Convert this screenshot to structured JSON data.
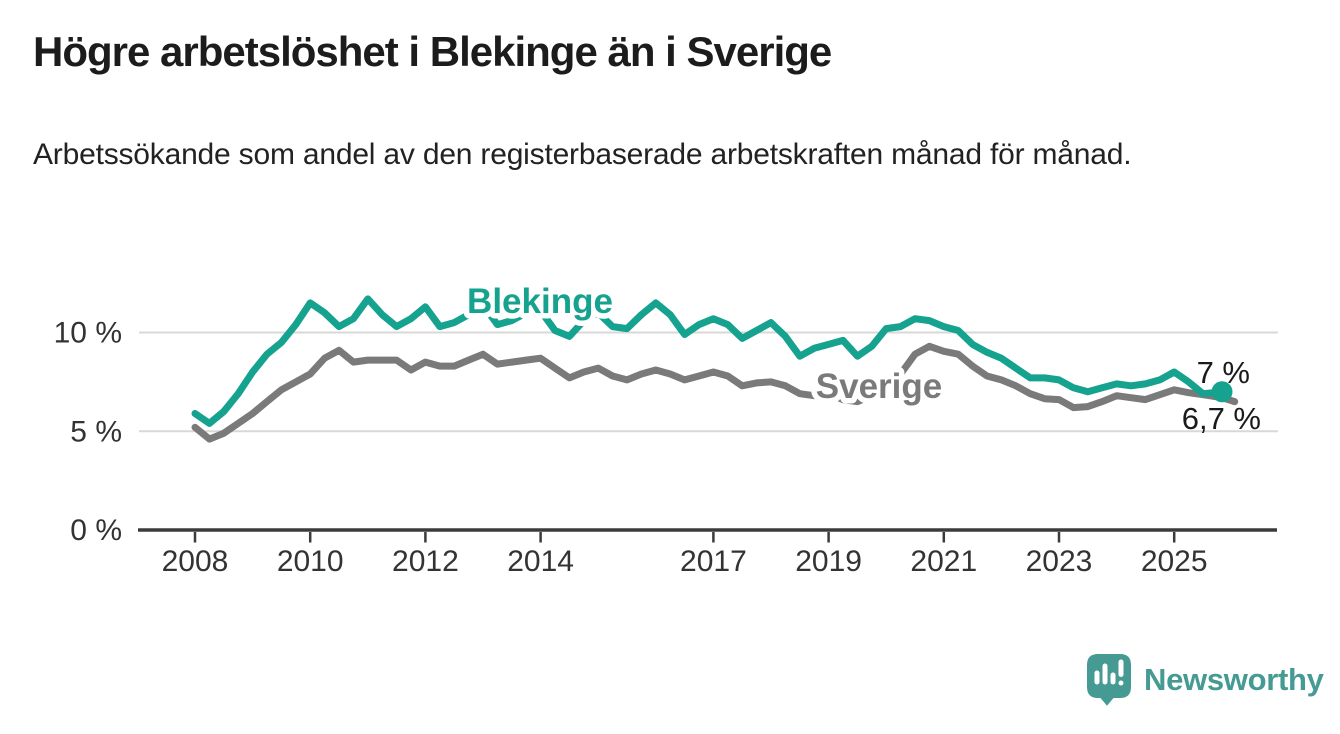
{
  "header": {
    "title": "Högre arbetslöshet i Blekinge än i Sverige",
    "subtitle": "Arbetssökande som andel av den registerbaserade arbetskraften månad för månad."
  },
  "footer": {
    "brand": "Newsworthy",
    "logo_icon": "speech-bubble-bar-chart"
  },
  "colors": {
    "blekinge_teal": "#15a28e",
    "sverige_gray": "#7a7a7a",
    "logo_teal": "#459b93",
    "gridline": "#d8d8d8",
    "axis": "#3b3b3b",
    "text_dark": "#333333",
    "annotation_text": "#1a1a1a"
  },
  "chart_data": {
    "type": "line",
    "title": "Högre arbetslöshet i Blekinge än i Sverige",
    "xlabel": "",
    "ylabel": "Arbetssökande som andel av den registerbaserade arbetskraften",
    "x_unit": "year (monthly observations, Jan 2008 – Nov 2025)",
    "grid": "horizontal",
    "legend_position": "inline-labels-on-lines",
    "ylim": [
      0,
      13
    ],
    "xlim": [
      2007.9,
      2026.6
    ],
    "xticks": [
      2008,
      2010,
      2012,
      2014,
      2017,
      2019,
      2021,
      2023,
      2025
    ],
    "yticks": [
      {
        "value": 0,
        "label": "0 %"
      },
      {
        "value": 5,
        "label": "5 %"
      },
      {
        "value": 10,
        "label": "10 %"
      }
    ],
    "series": [
      {
        "name": "Sverige",
        "color": "#7a7a7a",
        "end_label": "6,7 %",
        "end_value": 6.7,
        "points": [
          [
            2008.0,
            5.2
          ],
          [
            2008.25,
            4.6
          ],
          [
            2008.5,
            4.9
          ],
          [
            2008.75,
            5.4
          ],
          [
            2009.0,
            5.9
          ],
          [
            2009.25,
            6.5
          ],
          [
            2009.5,
            7.1
          ],
          [
            2009.75,
            7.5
          ],
          [
            2010.0,
            7.9
          ],
          [
            2010.25,
            8.7
          ],
          [
            2010.5,
            9.1
          ],
          [
            2010.75,
            8.5
          ],
          [
            2011.0,
            8.6
          ],
          [
            2011.25,
            8.6
          ],
          [
            2011.5,
            8.6
          ],
          [
            2011.75,
            8.1
          ],
          [
            2012.0,
            8.5
          ],
          [
            2012.25,
            8.3
          ],
          [
            2012.5,
            8.3
          ],
          [
            2012.75,
            8.6
          ],
          [
            2013.0,
            8.9
          ],
          [
            2013.25,
            8.4
          ],
          [
            2013.5,
            8.5
          ],
          [
            2013.75,
            8.6
          ],
          [
            2014.0,
            8.7
          ],
          [
            2014.25,
            8.2
          ],
          [
            2014.5,
            7.7
          ],
          [
            2014.75,
            8.0
          ],
          [
            2015.0,
            8.2
          ],
          [
            2015.25,
            7.8
          ],
          [
            2015.5,
            7.6
          ],
          [
            2015.75,
            7.9
          ],
          [
            2016.0,
            8.1
          ],
          [
            2016.25,
            7.9
          ],
          [
            2016.5,
            7.6
          ],
          [
            2016.75,
            7.8
          ],
          [
            2017.0,
            8.0
          ],
          [
            2017.25,
            7.8
          ],
          [
            2017.5,
            7.3
          ],
          [
            2017.75,
            7.45
          ],
          [
            2018.0,
            7.5
          ],
          [
            2018.25,
            7.3
          ],
          [
            2018.5,
            6.9
          ],
          [
            2018.75,
            6.8
          ],
          [
            2019.0,
            6.9
          ],
          [
            2019.25,
            6.6
          ],
          [
            2019.5,
            6.5
          ],
          [
            2019.75,
            6.8
          ],
          [
            2020.0,
            7.2
          ],
          [
            2020.25,
            7.9
          ],
          [
            2020.5,
            8.9
          ],
          [
            2020.75,
            9.3
          ],
          [
            2021.0,
            9.05
          ],
          [
            2021.25,
            8.9
          ],
          [
            2021.5,
            8.3
          ],
          [
            2021.75,
            7.8
          ],
          [
            2022.0,
            7.6
          ],
          [
            2022.25,
            7.3
          ],
          [
            2022.5,
            6.9
          ],
          [
            2022.75,
            6.65
          ],
          [
            2023.0,
            6.6
          ],
          [
            2023.25,
            6.2
          ],
          [
            2023.5,
            6.25
          ],
          [
            2023.75,
            6.5
          ],
          [
            2024.0,
            6.8
          ],
          [
            2024.25,
            6.7
          ],
          [
            2024.5,
            6.6
          ],
          [
            2024.75,
            6.85
          ],
          [
            2025.0,
            7.1
          ],
          [
            2025.25,
            6.95
          ],
          [
            2025.5,
            6.85
          ],
          [
            2025.83,
            6.7
          ]
        ]
      },
      {
        "name": "Blekinge",
        "color": "#15a28e",
        "end_label": "7 %",
        "end_value": 7.0,
        "end_marker": "dot",
        "points": [
          [
            2008.0,
            5.9
          ],
          [
            2008.25,
            5.4
          ],
          [
            2008.5,
            6.0
          ],
          [
            2008.75,
            6.9
          ],
          [
            2009.0,
            8.0
          ],
          [
            2009.25,
            8.9
          ],
          [
            2009.5,
            9.5
          ],
          [
            2009.75,
            10.4
          ],
          [
            2010.0,
            11.5
          ],
          [
            2010.25,
            11.0
          ],
          [
            2010.5,
            10.3
          ],
          [
            2010.75,
            10.7
          ],
          [
            2011.0,
            11.7
          ],
          [
            2011.25,
            10.9
          ],
          [
            2011.5,
            10.3
          ],
          [
            2011.75,
            10.7
          ],
          [
            2012.0,
            11.3
          ],
          [
            2012.25,
            10.3
          ],
          [
            2012.5,
            10.5
          ],
          [
            2012.75,
            10.9
          ],
          [
            2013.0,
            11.4
          ],
          [
            2013.25,
            10.4
          ],
          [
            2013.5,
            10.6
          ],
          [
            2013.75,
            11.0
          ],
          [
            2014.0,
            11.1
          ],
          [
            2014.25,
            10.1
          ],
          [
            2014.5,
            9.8
          ],
          [
            2014.75,
            10.6
          ],
          [
            2015.0,
            11.0
          ],
          [
            2015.25,
            10.3
          ],
          [
            2015.5,
            10.2
          ],
          [
            2015.75,
            10.9
          ],
          [
            2016.0,
            11.5
          ],
          [
            2016.25,
            10.9
          ],
          [
            2016.5,
            9.9
          ],
          [
            2016.75,
            10.4
          ],
          [
            2017.0,
            10.7
          ],
          [
            2017.25,
            10.4
          ],
          [
            2017.5,
            9.7
          ],
          [
            2017.75,
            10.1
          ],
          [
            2018.0,
            10.5
          ],
          [
            2018.25,
            9.8
          ],
          [
            2018.5,
            8.8
          ],
          [
            2018.75,
            9.2
          ],
          [
            2019.0,
            9.4
          ],
          [
            2019.25,
            9.6
          ],
          [
            2019.5,
            8.8
          ],
          [
            2019.75,
            9.3
          ],
          [
            2020.0,
            10.2
          ],
          [
            2020.25,
            10.3
          ],
          [
            2020.5,
            10.7
          ],
          [
            2020.75,
            10.6
          ],
          [
            2021.0,
            10.3
          ],
          [
            2021.25,
            10.1
          ],
          [
            2021.5,
            9.4
          ],
          [
            2021.75,
            9.0
          ],
          [
            2022.0,
            8.7
          ],
          [
            2022.25,
            8.2
          ],
          [
            2022.5,
            7.7
          ],
          [
            2022.75,
            7.7
          ],
          [
            2023.0,
            7.6
          ],
          [
            2023.25,
            7.2
          ],
          [
            2023.5,
            7.0
          ],
          [
            2023.75,
            7.2
          ],
          [
            2024.0,
            7.4
          ],
          [
            2024.25,
            7.3
          ],
          [
            2024.5,
            7.4
          ],
          [
            2024.75,
            7.6
          ],
          [
            2025.0,
            8.0
          ],
          [
            2025.25,
            7.5
          ],
          [
            2025.5,
            6.9
          ],
          [
            2025.83,
            7.0
          ]
        ]
      }
    ]
  }
}
